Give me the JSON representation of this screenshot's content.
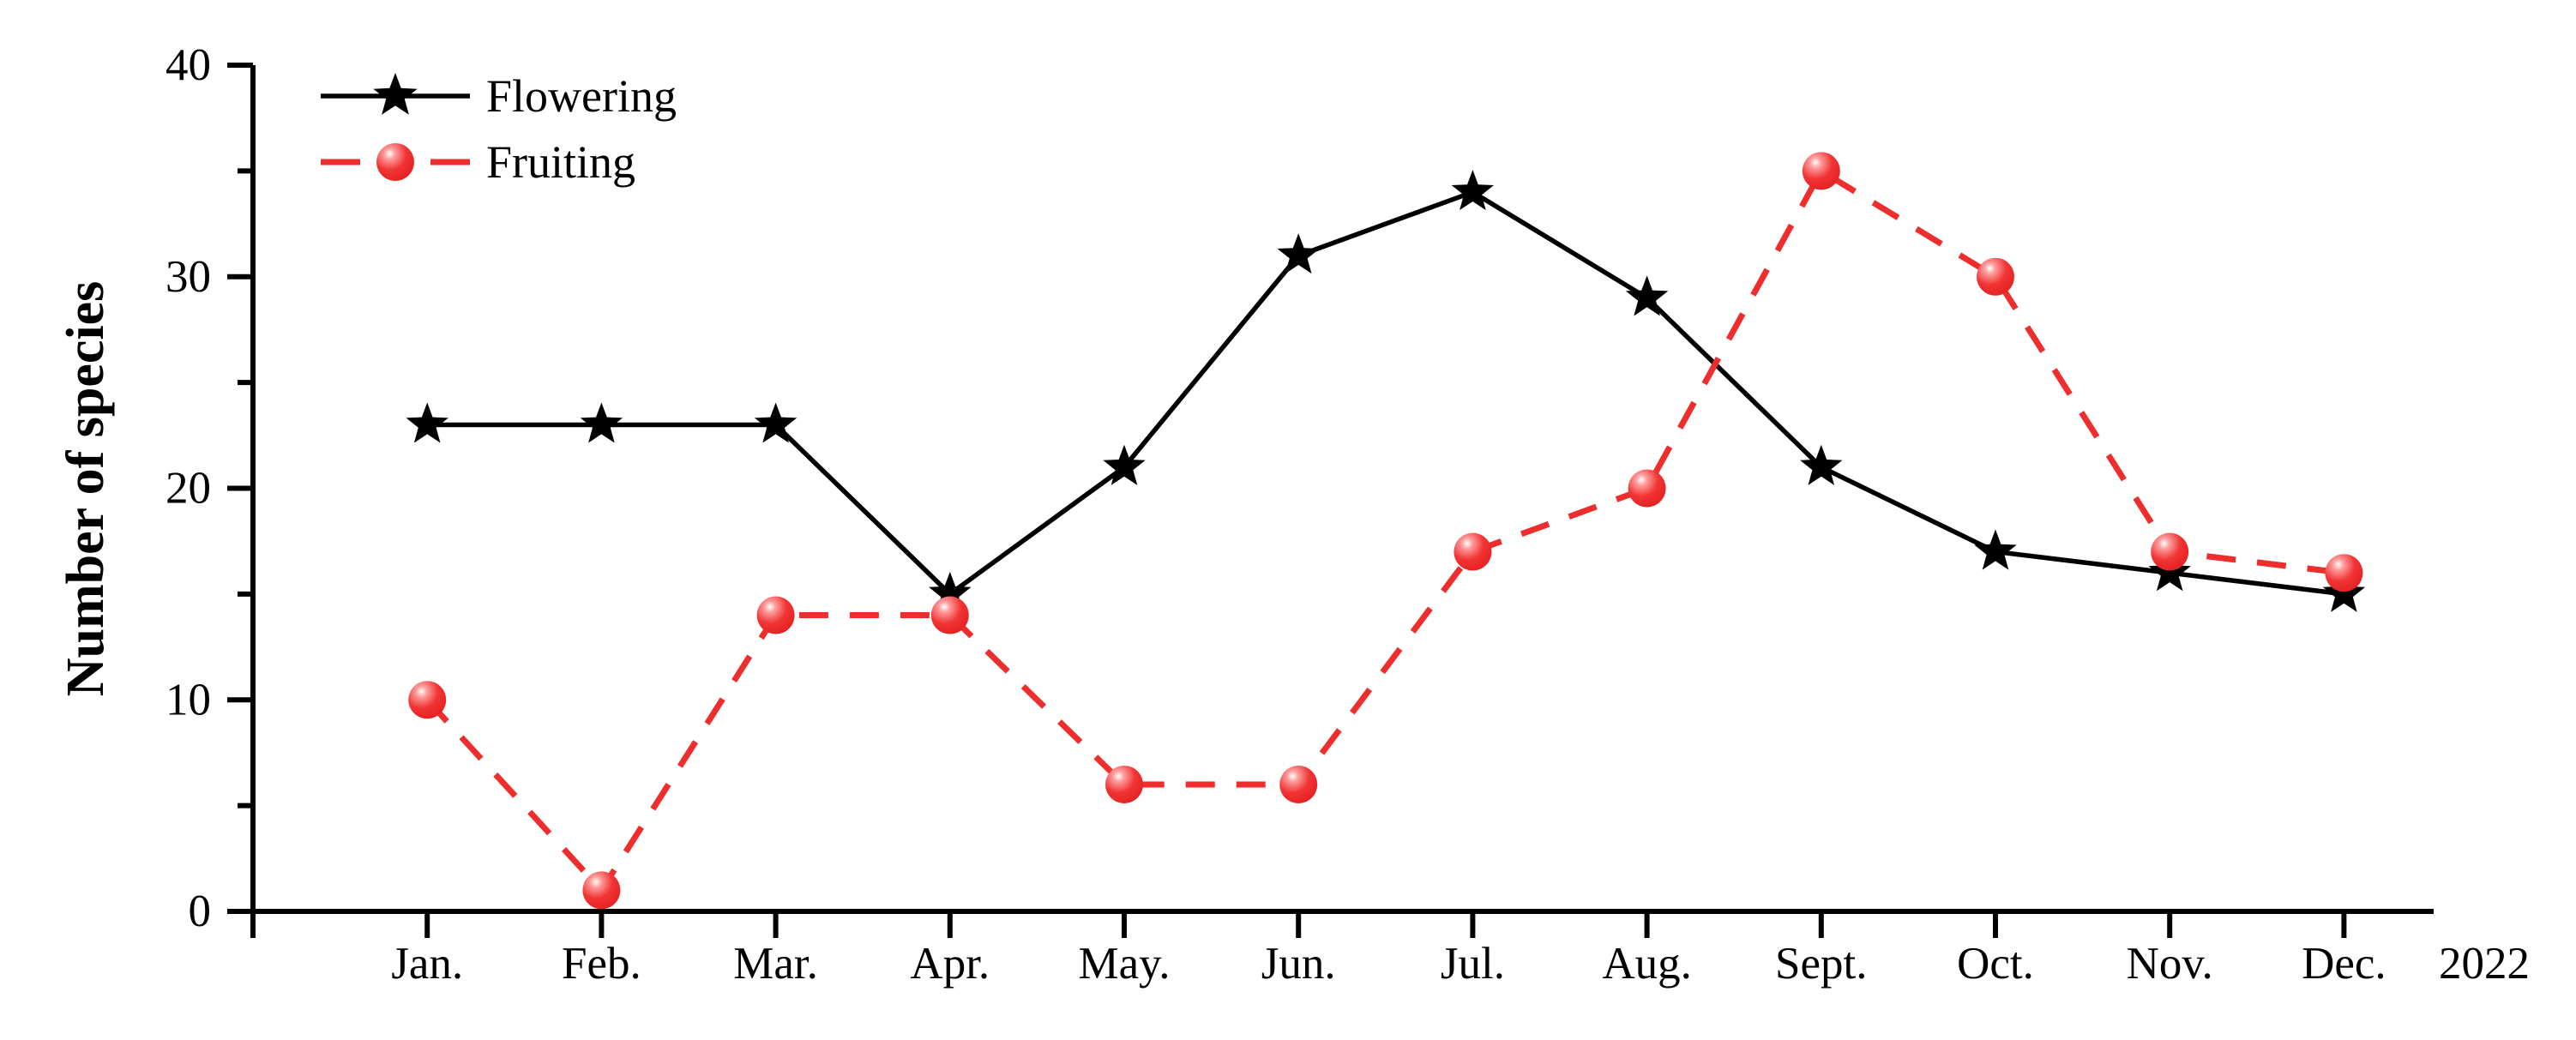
{
  "figure": {
    "background_color": "#ffffff",
    "axis_color": "#000000"
  },
  "chart_data": {
    "type": "line",
    "title": "",
    "xlabel": "",
    "ylabel": "Number of species",
    "x_suffix_label": "2022",
    "categories": [
      "Jan.",
      "Feb.",
      "Mar.",
      "Apr.",
      "May.",
      "Jun.",
      "Jul.",
      "Aug.",
      "Sept.",
      "Oct.",
      "Nov.",
      "Dec."
    ],
    "ylim": [
      0,
      40
    ],
    "ytick_major_step": 10,
    "ytick_minor_step": 5,
    "ytick_labels": [
      "0",
      "10",
      "20",
      "30",
      "40"
    ],
    "grid": false,
    "legend_position": "top-left-inside",
    "series": [
      {
        "name": "Flowering",
        "values": [
          23,
          23,
          23,
          15,
          21,
          31,
          34,
          29,
          21,
          17,
          16,
          15
        ],
        "color": "#000000",
        "line_style": "solid",
        "marker": "star"
      },
      {
        "name": "Fruiting",
        "values": [
          10,
          1,
          14,
          14,
          6,
          6,
          17,
          20,
          35,
          30,
          17,
          16
        ],
        "color": "#ee2d2d",
        "line_style": "dashed",
        "marker": "ball",
        "marker_highlight_color": "#ffffff"
      }
    ]
  }
}
